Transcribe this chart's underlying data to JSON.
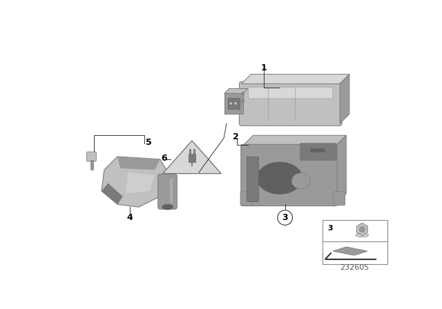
{
  "background_color": "#ffffff",
  "part_number": "232605",
  "figsize": [
    6.4,
    4.48
  ],
  "dpi": 100,
  "gray_dark": "#7a7a7a",
  "gray_mid": "#9a9a9a",
  "gray_light": "#c0c0c0",
  "gray_lighter": "#d8d8d8",
  "gray_shadow": "#606060",
  "line_color": "#333333"
}
